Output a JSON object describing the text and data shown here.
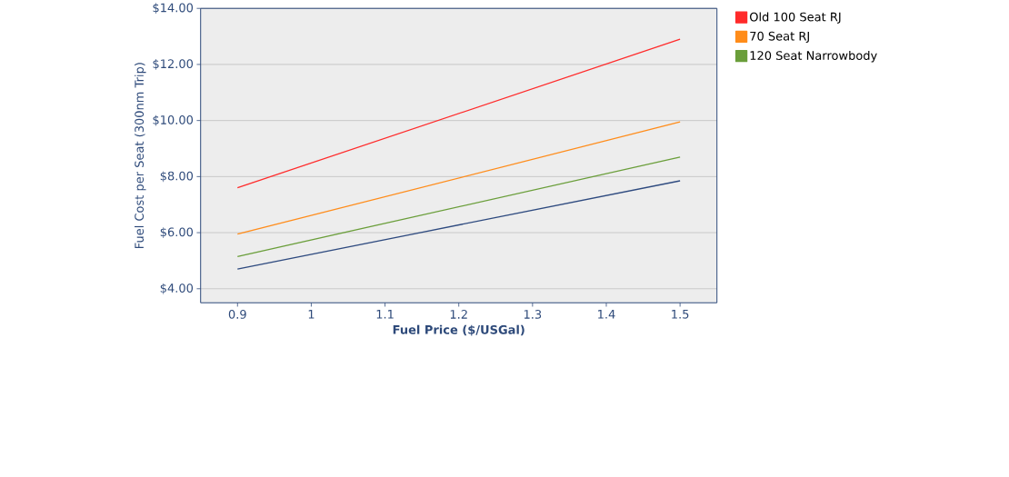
{
  "chart_data": {
    "type": "line",
    "xlabel": "Fuel Price ($/USGal)",
    "ylabel": "Fuel Cost per Seat (300nm Trip)",
    "x": [
      0.9,
      1.5
    ],
    "series": [
      {
        "name": "Old 100 Seat RJ",
        "color": "#ff2a2a",
        "values": [
          7.6,
          12.9
        ]
      },
      {
        "name": "70 Seat RJ",
        "color": "#ff8c1a",
        "values": [
          5.95,
          9.95
        ]
      },
      {
        "name": "120 Seat Narrowbody",
        "color": "#6a9e3a",
        "values": [
          5.15,
          8.7
        ]
      },
      {
        "color": "#2e4a7f",
        "values": [
          4.7,
          7.85
        ]
      }
    ],
    "xlim": [
      0.85,
      1.55
    ],
    "ylim": [
      3.5,
      14
    ],
    "xticks": [
      0.9,
      1,
      1.1,
      1.2,
      1.3,
      1.4,
      1.5
    ],
    "yticks": [
      {
        "value": 4,
        "label": "$4.00"
      },
      {
        "value": 6,
        "label": "$6.00"
      },
      {
        "value": 8,
        "label": "$8.00"
      },
      {
        "value": 10,
        "label": "$10.00"
      },
      {
        "value": 12,
        "label": "$12.00"
      },
      {
        "value": 14,
        "label": "$14.00"
      }
    ],
    "grid": "y",
    "legend": "top right",
    "marker": "none",
    "line_style": "solid"
  }
}
